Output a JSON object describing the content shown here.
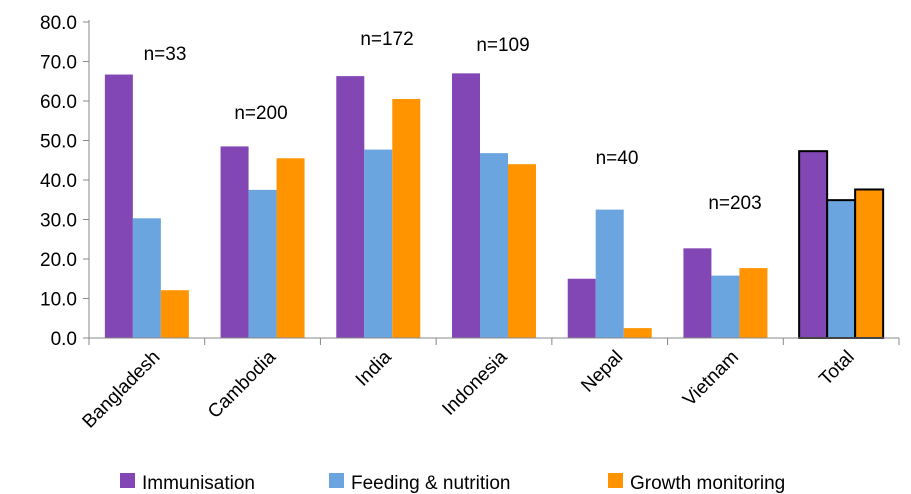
{
  "chart_data": {
    "type": "bar",
    "categories": [
      "Bangladesh",
      "Cambodia",
      "India",
      "Indonesia",
      "Nepal",
      "Vietnam",
      "Total"
    ],
    "series": [
      {
        "name": "Immunisation",
        "color": "#8247b5",
        "values": [
          66.7,
          48.5,
          66.3,
          67.0,
          15.0,
          22.7,
          47.3
        ]
      },
      {
        "name": "Feeding & nutrition",
        "color": "#6aa5e0",
        "values": [
          30.3,
          37.5,
          47.7,
          46.8,
          32.5,
          15.8,
          34.9
        ]
      },
      {
        "name": "Growth monitoring",
        "color": "#ff9400",
        "values": [
          12.1,
          45.5,
          60.5,
          44.0,
          2.5,
          17.7,
          37.6
        ]
      }
    ],
    "n_labels": [
      "n=33",
      "n=200",
      "n=172",
      "n=109",
      "n=40",
      "n=203",
      ""
    ],
    "highlight_category": "Total",
    "yticks": [
      "0.0",
      "10.0",
      "20.0",
      "30.0",
      "40.0",
      "50.0",
      "60.0",
      "70.0",
      "80.0"
    ],
    "ylim": [
      0,
      80
    ],
    "grid": false,
    "legend_position": "bottom"
  }
}
